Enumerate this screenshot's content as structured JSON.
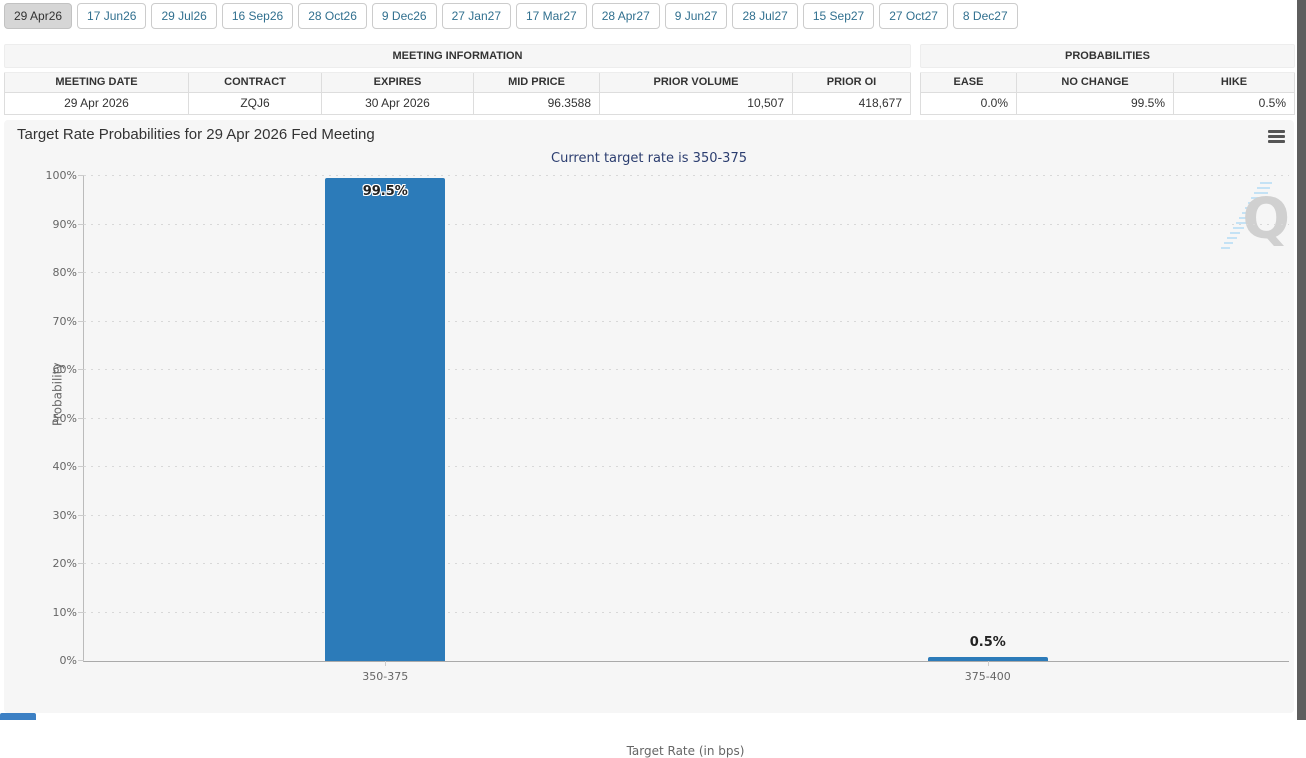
{
  "tabs": {
    "items": [
      {
        "label": "29 Apr26",
        "selected": true
      },
      {
        "label": "17 Jun26",
        "selected": false
      },
      {
        "label": "29 Jul26",
        "selected": false
      },
      {
        "label": "16 Sep26",
        "selected": false
      },
      {
        "label": "28 Oct26",
        "selected": false
      },
      {
        "label": "9 Dec26",
        "selected": false
      },
      {
        "label": "27 Jan27",
        "selected": false
      },
      {
        "label": "17 Mar27",
        "selected": false
      },
      {
        "label": "28 Apr27",
        "selected": false
      },
      {
        "label": "9 Jun27",
        "selected": false
      },
      {
        "label": "28 Jul27",
        "selected": false
      },
      {
        "label": "15 Sep27",
        "selected": false
      },
      {
        "label": "27 Oct27",
        "selected": false
      },
      {
        "label": "8 Dec27",
        "selected": false
      }
    ]
  },
  "meeting_information": {
    "title": "MEETING INFORMATION",
    "columns": [
      "MEETING DATE",
      "CONTRACT",
      "EXPIRES",
      "MID PRICE",
      "PRIOR VOLUME",
      "PRIOR OI"
    ],
    "values": [
      "29 Apr 2026",
      "ZQJ6",
      "30 Apr 2026",
      "96.3588",
      "10,507",
      "418,677"
    ]
  },
  "probabilities": {
    "title": "PROBABILITIES",
    "columns": [
      "EASE",
      "NO CHANGE",
      "HIKE"
    ],
    "values": [
      "0.0%",
      "99.5%",
      "0.5%"
    ]
  },
  "chart": {
    "title": "Target Rate Probabilities for 29 Apr 2026 Fed Meeting",
    "subtitle": "Current target rate is 350-375",
    "menu_icon": "hamburger-icon",
    "watermark_letter": "Q"
  },
  "chart_data": {
    "type": "bar",
    "title": "Target Rate Probabilities for 29 Apr 2026 Fed Meeting",
    "subtitle": "Current target rate is 350-375",
    "categories": [
      "350-375",
      "375-400"
    ],
    "values": [
      99.5,
      0.5
    ],
    "value_labels": [
      "99.5%",
      "0.5%"
    ],
    "xlabel": "Target Rate (in bps)",
    "ylabel": "Probability",
    "ylim": [
      0,
      100
    ],
    "yticks": [
      0,
      10,
      20,
      30,
      40,
      50,
      60,
      70,
      80,
      90,
      100
    ],
    "ytick_labels": [
      "0%",
      "10%",
      "20%",
      "30%",
      "40%",
      "50%",
      "60%",
      "70%",
      "80%",
      "90%",
      "100%"
    ],
    "bar_color": "#2c7bb9",
    "grid": "horizontal-dotted",
    "legend": "none"
  },
  "colors": {
    "bar": "#2c7bb9",
    "subtitle_text": "#2c3e70",
    "tab_text": "#31708f",
    "selected_tab_bg": "#d6d6d6",
    "chart_background": "#f6f6f6",
    "scrollbar": "#5e5e5e",
    "watermark_gray": "#cccccc",
    "watermark_blue": "#bfe0f5"
  }
}
